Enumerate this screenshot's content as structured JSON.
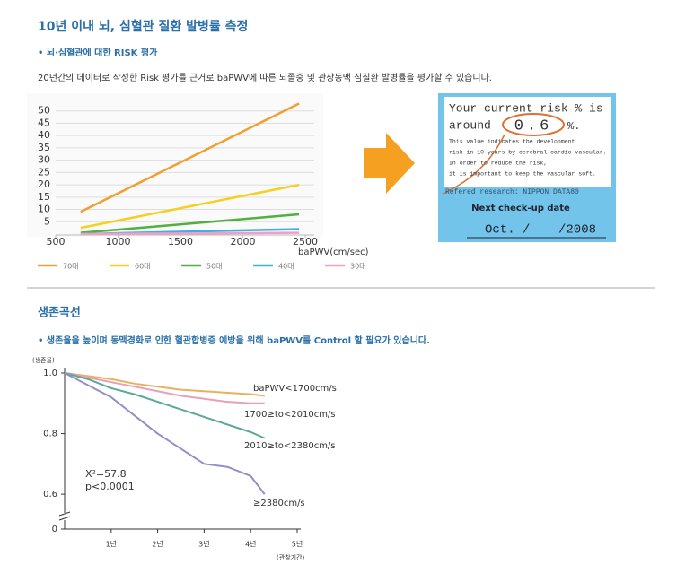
{
  "section1": {
    "title": "10년 이내 뇌, 심혈관 질환 발병률 측정",
    "subtitle": "• 뇌·심혈관에 대한 RISK 평가",
    "description": "20년간의 데이터로 작성한 Risk 평가를 근거로 baPWV에 따른 뇌졸중 및 관상동맥 심질환 발병률을 평가할 수 있습니다."
  },
  "risk_card": {
    "line1": "Your current risk % is",
    "around": "around",
    "risk_value": "0.6",
    "unit": "%.",
    "notes": [
      "This value indicates the development",
      "risk in 10 years by cerebral cardio vascular.",
      "In order to reduce the risk,",
      "it is important to keep the vascular soft."
    ],
    "reference": "Refered research: NIPPON DATA80",
    "next_label": "Next check-up date",
    "date_month": "Oct. /",
    "date_year": "/2008"
  },
  "section2": {
    "title": "생존곡선",
    "subtitle": "• 생존율을 높이며 동맥경화로 인한 혈관합병증 예방을 위해 baPWV를 Control 할 필요가 있습니다."
  },
  "chart_data": [
    {
      "type": "line",
      "x_label": "baPWV(cm/sec)",
      "xlim": [
        500,
        2500
      ],
      "xticks": [
        500,
        1000,
        1500,
        2000,
        2500
      ],
      "ylim": [
        0,
        55
      ],
      "yticks": [
        5,
        10,
        15,
        20,
        25,
        30,
        35,
        40,
        45,
        50
      ],
      "grid": true,
      "legend": "bottom",
      "x": [
        700,
        2450
      ],
      "series": [
        {
          "name": "70대",
          "color": "#f0a030",
          "values": [
            9,
            53
          ]
        },
        {
          "name": "60대",
          "color": "#f5d020",
          "values": [
            2.5,
            20
          ]
        },
        {
          "name": "50대",
          "color": "#50b040",
          "values": [
            0.5,
            8
          ]
        },
        {
          "name": "40대",
          "color": "#40b0e0",
          "values": [
            0,
            2
          ]
        },
        {
          "name": "30대",
          "color": "#f0a0c8",
          "values": [
            0,
            0.5
          ]
        }
      ]
    },
    {
      "type": "survival",
      "y_label": "(생존율)",
      "x_label": "(관찰기간)",
      "xlim": [
        0,
        5
      ],
      "xticks": [
        {
          "value": 1,
          "label": "1년"
        },
        {
          "value": 2,
          "label": "2년"
        },
        {
          "value": 3,
          "label": "3년"
        },
        {
          "value": 4,
          "label": "4년"
        },
        {
          "value": 5,
          "label": "5년"
        }
      ],
      "ylim": [
        0.55,
        1.0
      ],
      "yticks": [
        {
          "value": 1.0,
          "label": "1.0"
        },
        {
          "value": 0.8,
          "label": "0.8"
        },
        {
          "value": 0.6,
          "label": "0.6"
        },
        0
      ],
      "annotations": [
        "X²=57.8",
        "p<0.0001"
      ],
      "x": [
        0,
        0.5,
        1,
        1.5,
        2,
        2.5,
        3,
        3.5,
        4,
        4.3
      ],
      "series": [
        {
          "name": "baPWV<1700cm/s",
          "color": "#e8b060",
          "values": [
            1,
            0.99,
            0.98,
            0.965,
            0.955,
            0.945,
            0.94,
            0.935,
            0.93,
            0.925
          ]
        },
        {
          "name": "1700≥to<2010cm/s",
          "color": "#e8a0b8",
          "values": [
            1,
            0.985,
            0.97,
            0.955,
            0.94,
            0.925,
            0.915,
            0.905,
            0.9,
            0.9
          ]
        },
        {
          "name": "2010≥to<2380cm/s",
          "color": "#5aa898",
          "values": [
            1,
            0.98,
            0.95,
            0.93,
            0.905,
            0.88,
            0.855,
            0.83,
            0.805,
            0.785
          ]
        },
        {
          "name": "≥2380cm/s",
          "color": "#9090c8",
          "values": [
            1,
            0.96,
            0.92,
            0.86,
            0.8,
            0.75,
            0.7,
            0.69,
            0.66,
            0.6
          ]
        }
      ]
    }
  ]
}
